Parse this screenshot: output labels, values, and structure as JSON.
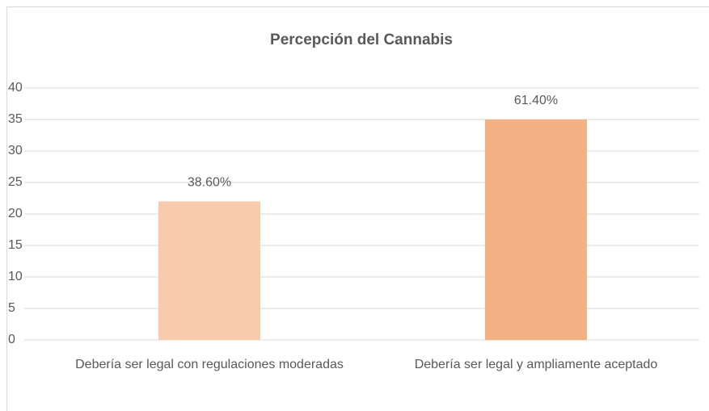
{
  "chart_data": {
    "type": "bar",
    "title": "Percepción del Cannabis",
    "categories": [
      "Debería ser legal con regulaciones moderadas",
      "Debería ser legal y ampliamente aceptado"
    ],
    "values": [
      22,
      35
    ],
    "colors": [
      "#f8cbad",
      "#f4b183"
    ],
    "annotations": [
      "38.60%",
      "61.40%"
    ],
    "ylim": [
      0,
      40
    ],
    "yticks": [
      0,
      5,
      10,
      15,
      20,
      25,
      30,
      35,
      40
    ],
    "grid": true
  }
}
